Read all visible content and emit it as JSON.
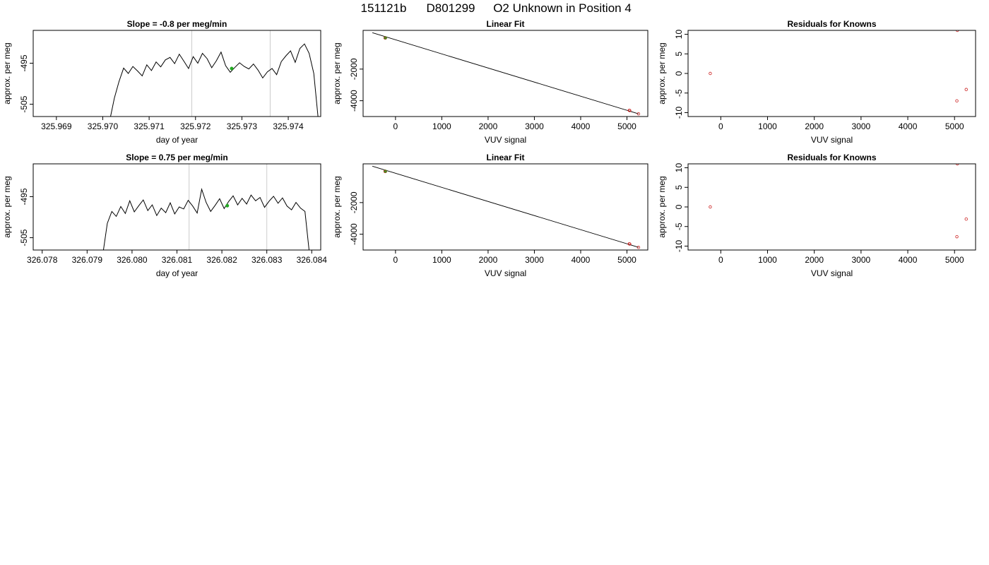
{
  "title": {
    "run": "151121b",
    "sample": "D801299",
    "description": "O2 Unknown in Position  4"
  },
  "chart_data": [
    {
      "id": "slope-top",
      "type": "line",
      "title": "Slope =  -0.8  per meg/min",
      "xlabel": "day of year",
      "ylabel": "approx. per meg",
      "xlim": [
        325.9685,
        325.9747
      ],
      "ylim": [
        -508.0,
        -487.0
      ],
      "xticks": [
        325.969,
        325.97,
        325.971,
        325.972,
        325.973,
        325.974
      ],
      "xtick_labels": [
        "325.969",
        "325.970",
        "325.971",
        "325.972",
        "325.973",
        "325.974"
      ],
      "yticks": [
        -495,
        -505
      ],
      "ytick_labels": [
        "-495",
        "-505"
      ],
      "vlines": [
        325.97192,
        325.97361
      ],
      "series": [
        {
          "style": "line",
          "color": "#000000",
          "x": [
            325.97015,
            325.97025,
            325.97035,
            325.97045,
            325.97055,
            325.97065,
            325.97075,
            325.97085,
            325.97095,
            325.97105,
            325.97115,
            325.97125,
            325.97135,
            325.97145,
            325.97155,
            325.97165,
            325.97175,
            325.97185,
            325.97195,
            325.97205,
            325.97215,
            325.97225,
            325.97235,
            325.97245,
            325.97255,
            325.97265,
            325.97275,
            325.97285,
            325.97295,
            325.97305,
            325.97315,
            325.97325,
            325.97335,
            325.97345,
            325.97355,
            325.97365,
            325.97375,
            325.97385,
            325.97395,
            325.97405,
            325.97415,
            325.97425,
            325.97435,
            325.97445,
            325.97455,
            325.97465
          ],
          "y": [
            -509.0,
            -503.5,
            -499.5,
            -496.2,
            -497.5,
            -495.8,
            -496.9,
            -498.1,
            -495.4,
            -496.8,
            -494.7,
            -495.9,
            -494.2,
            -493.6,
            -495.1,
            -492.8,
            -494.5,
            -496.3,
            -493.4,
            -495.0,
            -492.6,
            -493.9,
            -496.1,
            -494.4,
            -492.3,
            -495.6,
            -497.2,
            -496.0,
            -494.9,
            -495.8,
            -496.4,
            -495.2,
            -496.7,
            -498.6,
            -497.1,
            -496.3,
            -497.8,
            -494.6,
            -493.2,
            -492.0,
            -494.8,
            -491.4,
            -490.3,
            -492.6,
            -497.5,
            -509.0
          ]
        },
        {
          "style": "point",
          "color": "#22aa22",
          "x": [
            325.97278
          ],
          "y": [
            -496.3
          ]
        }
      ]
    },
    {
      "id": "linear-fit-top",
      "type": "scatter",
      "title": "Linear Fit",
      "xlabel": "VUV signal",
      "ylabel": "approx. per meg",
      "xlim": [
        -700,
        5450
      ],
      "ylim": [
        -5000,
        450
      ],
      "xticks": [
        0,
        1000,
        2000,
        3000,
        4000,
        5000
      ],
      "xtick_labels": [
        "0",
        "1000",
        "2000",
        "3000",
        "4000",
        "5000"
      ],
      "yticks": [
        -2000,
        -4000
      ],
      "ytick_labels": [
        "-2000",
        "-4000"
      ],
      "fit_line": {
        "x": [
          -500,
          5250
        ],
        "y": [
          300,
          -4830
        ]
      },
      "series": [
        {
          "style": "open-point",
          "color": "#cc2222",
          "x": [
            5050,
            5060,
            5250
          ],
          "y": [
            -4610,
            -4620,
            -4830
          ]
        },
        {
          "style": "point",
          "color": "#22aa22",
          "x": [
            -220
          ],
          "y": [
            -25
          ]
        },
        {
          "style": "open-point",
          "color": "#cc2222",
          "x": [
            -225
          ],
          "y": [
            -30
          ]
        }
      ]
    },
    {
      "id": "residuals-top",
      "type": "scatter",
      "title": "Residuals for Knowns",
      "xlabel": "VUV signal",
      "ylabel": "approx. per meg",
      "xlim": [
        -700,
        5450
      ],
      "ylim": [
        -11.0,
        11.0
      ],
      "xticks": [
        0,
        1000,
        2000,
        3000,
        4000,
        5000
      ],
      "xtick_labels": [
        "0",
        "1000",
        "2000",
        "3000",
        "4000",
        "5000"
      ],
      "yticks": [
        10,
        5,
        0,
        -5,
        -10
      ],
      "ytick_labels": [
        "10",
        "5",
        "0",
        "-5",
        "-10"
      ],
      "series": [
        {
          "style": "open-point",
          "color": "#cc2222",
          "x": [
            -225,
            5050,
            5060,
            5250
          ],
          "y": [
            0.0,
            -7.0,
            11.0,
            -4.1
          ]
        }
      ]
    },
    {
      "id": "slope-bottom",
      "type": "line",
      "title": "Slope =  0.75  per meg/min",
      "xlabel": "day of year",
      "ylabel": "approx. per meg",
      "xlim": [
        326.0778,
        326.0842
      ],
      "ylim": [
        -508.0,
        -487.0
      ],
      "xticks": [
        326.078,
        326.079,
        326.08,
        326.081,
        326.082,
        326.083,
        326.084
      ],
      "xtick_labels": [
        "326.078",
        "326.079",
        "326.080",
        "326.081",
        "326.082",
        "326.083",
        "326.084"
      ],
      "yticks": [
        -495,
        -505
      ],
      "ytick_labels": [
        "-495",
        "-505"
      ],
      "vlines": [
        326.08127,
        326.083
      ],
      "series": [
        {
          "style": "line",
          "color": "#000000",
          "x": [
            326.07935,
            326.07945,
            326.07955,
            326.07965,
            326.07975,
            326.07985,
            326.07995,
            326.08005,
            326.08015,
            326.08025,
            326.08035,
            326.08045,
            326.08055,
            326.08065,
            326.08075,
            326.08085,
            326.08095,
            326.08105,
            326.08115,
            326.08125,
            326.08135,
            326.08145,
            326.08155,
            326.08165,
            326.08175,
            326.08185,
            326.08195,
            326.08205,
            326.08215,
            326.08225,
            326.08235,
            326.08245,
            326.08255,
            326.08265,
            326.08275,
            326.08285,
            326.08295,
            326.08305,
            326.08315,
            326.08325,
            326.08335,
            326.08345,
            326.08355,
            326.08365,
            326.08375,
            326.08385,
            326.08395
          ],
          "y": [
            -509.0,
            -501.5,
            -498.6,
            -499.8,
            -497.4,
            -499.1,
            -496.0,
            -498.7,
            -497.2,
            -495.8,
            -498.4,
            -497.0,
            -499.6,
            -497.8,
            -498.9,
            -496.5,
            -499.2,
            -497.5,
            -498.0,
            -495.9,
            -497.3,
            -499.0,
            -493.2,
            -496.4,
            -498.6,
            -497.1,
            -495.5,
            -497.9,
            -496.2,
            -494.8,
            -497.0,
            -495.4,
            -496.8,
            -494.6,
            -496.0,
            -495.2,
            -497.6,
            -496.1,
            -494.9,
            -496.6,
            -495.3,
            -497.3,
            -498.2,
            -496.4,
            -497.8,
            -498.6,
            -509.0
          ]
        },
        {
          "style": "point",
          "color": "#22aa22",
          "x": [
            326.08212
          ],
          "y": [
            -497.2
          ]
        }
      ]
    },
    {
      "id": "linear-fit-bottom",
      "type": "scatter",
      "title": "Linear Fit",
      "xlabel": "VUV signal",
      "ylabel": "approx. per meg",
      "xlim": [
        -700,
        5450
      ],
      "ylim": [
        -5000,
        450
      ],
      "xticks": [
        0,
        1000,
        2000,
        3000,
        4000,
        5000
      ],
      "xtick_labels": [
        "0",
        "1000",
        "2000",
        "3000",
        "4000",
        "5000"
      ],
      "yticks": [
        -2000,
        -4000
      ],
      "ytick_labels": [
        "-2000",
        "-4000"
      ],
      "fit_line": {
        "x": [
          -500,
          5250
        ],
        "y": [
          300,
          -4830
        ]
      },
      "series": [
        {
          "style": "open-point",
          "color": "#cc2222",
          "x": [
            5050,
            5060,
            5250
          ],
          "y": [
            -4610,
            -4620,
            -4830
          ]
        },
        {
          "style": "point",
          "color": "#22aa22",
          "x": [
            -220
          ],
          "y": [
            -25
          ]
        },
        {
          "style": "open-point",
          "color": "#cc2222",
          "x": [
            -225
          ],
          "y": [
            -30
          ]
        }
      ]
    },
    {
      "id": "residuals-bottom",
      "type": "scatter",
      "title": "Residuals for Knowns",
      "xlabel": "VUV signal",
      "ylabel": "approx. per meg",
      "xlim": [
        -700,
        5450
      ],
      "ylim": [
        -11.0,
        11.0
      ],
      "xticks": [
        0,
        1000,
        2000,
        3000,
        4000,
        5000
      ],
      "xtick_labels": [
        "0",
        "1000",
        "2000",
        "3000",
        "4000",
        "5000"
      ],
      "yticks": [
        10,
        5,
        0,
        -5,
        -10
      ],
      "ytick_labels": [
        "10",
        "5",
        "0",
        "-5",
        "-10"
      ],
      "series": [
        {
          "style": "open-point",
          "color": "#cc2222",
          "x": [
            -225,
            5050,
            5060,
            5250
          ],
          "y": [
            0.0,
            -7.6,
            11.0,
            -3.1
          ]
        }
      ]
    }
  ]
}
